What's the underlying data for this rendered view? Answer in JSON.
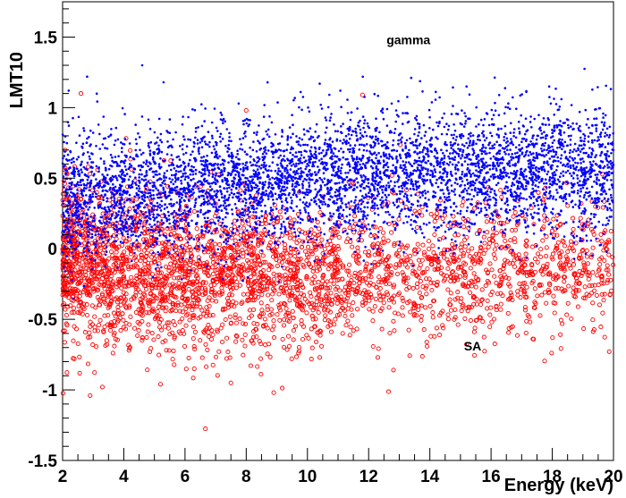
{
  "chart_data": {
    "type": "scatter",
    "title": "",
    "xlabel": "Energy (keV)",
    "ylabel": "LMT10",
    "xlim": [
      2,
      20
    ],
    "ylim": [
      -1.5,
      1.75
    ],
    "x_ticks": [
      "2",
      "4",
      "6",
      "8",
      "10",
      "12",
      "14",
      "16",
      "18",
      "20"
    ],
    "y_ticks": [
      "-1.5",
      "-1",
      "-0.5",
      "0",
      "0.5",
      "1",
      "1.5"
    ],
    "grid": false,
    "legend": "none",
    "annotations": [
      {
        "text": "gamma",
        "x": 13.3,
        "y": 1.45
      },
      {
        "text": "SA",
        "x": 15.4,
        "y": -0.72
      }
    ],
    "series": [
      {
        "name": "gamma",
        "color": "#0000ff",
        "marker": "dot",
        "band_center": [
          [
            2,
            0.35
          ],
          [
            6,
            0.43
          ],
          [
            10,
            0.5
          ],
          [
            14,
            0.55
          ],
          [
            20,
            0.58
          ]
        ],
        "spread": 0.22,
        "points_count": 5200,
        "notable_points": [
          [
            4.6,
            1.3
          ],
          [
            2.2,
            1.12
          ],
          [
            2.8,
            1.22
          ],
          [
            5.3,
            1.18
          ],
          [
            10.4,
            1.17
          ],
          [
            17.9,
            1.15
          ],
          [
            15.2,
            1.15
          ],
          [
            18.3,
            1.06
          ]
        ]
      },
      {
        "name": "SA",
        "color": "#ff0000",
        "marker": "open-circle",
        "band_center": [
          [
            2,
            -0.08
          ],
          [
            6,
            -0.18
          ],
          [
            10,
            -0.2
          ],
          [
            14,
            -0.15
          ],
          [
            20,
            -0.1
          ]
        ],
        "spread": 0.24,
        "points_count": 3300,
        "notable_points": [
          [
            2.9,
            -1.04
          ],
          [
            3.3,
            -0.98
          ],
          [
            5.2,
            -0.96
          ],
          [
            8.9,
            -1.02
          ],
          [
            6.3,
            -0.85
          ],
          [
            10.4,
            -0.77
          ],
          [
            12.3,
            -0.77
          ],
          [
            2.6,
            1.1
          ],
          [
            11.8,
            1.09
          ],
          [
            8.0,
            0.98
          ]
        ]
      }
    ]
  }
}
